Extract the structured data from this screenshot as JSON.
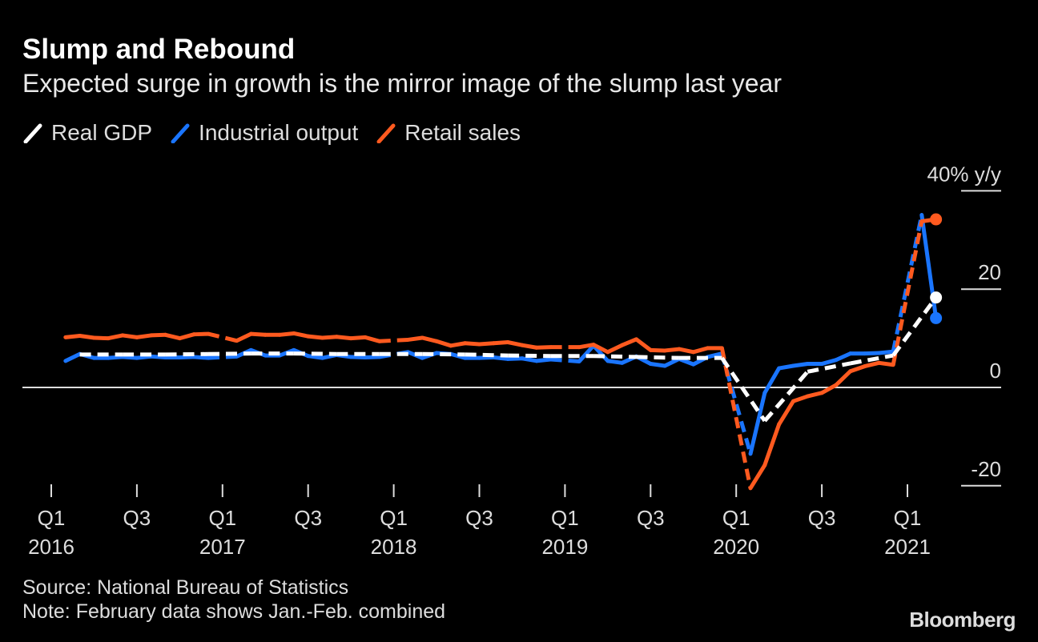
{
  "title": "Slump and Rebound",
  "subtitle": "Expected surge in growth is the mirror image of the slump last year",
  "source": "Source: National Bureau of Statistics",
  "note": "Note: February data shows Jan.-Feb. combined",
  "logo": "Bloomberg",
  "chart_data": {
    "type": "line",
    "title": "Slump and Rebound",
    "subtitle": "Expected surge in growth is the mirror image of the slump last year",
    "ylabel": "% y/y",
    "ylim": [
      -20,
      40
    ],
    "yticks": [
      {
        "v": 40,
        "label": "40%"
      },
      {
        "v": 20,
        "label": "20"
      },
      {
        "v": 0,
        "label": "0"
      },
      {
        "v": -20,
        "label": "-20"
      }
    ],
    "yunit": "y/y",
    "xticks": [
      {
        "date": "2016-01",
        "q": "Q1",
        "year": "2016"
      },
      {
        "date": "2016-07",
        "q": "Q3",
        "year": ""
      },
      {
        "date": "2017-01",
        "q": "Q1",
        "year": "2017"
      },
      {
        "date": "2017-07",
        "q": "Q3",
        "year": ""
      },
      {
        "date": "2018-01",
        "q": "Q1",
        "year": "2018"
      },
      {
        "date": "2018-07",
        "q": "Q3",
        "year": ""
      },
      {
        "date": "2019-01",
        "q": "Q1",
        "year": "2019"
      },
      {
        "date": "2019-07",
        "q": "Q3",
        "year": ""
      },
      {
        "date": "2020-01",
        "q": "Q1",
        "year": "2020"
      },
      {
        "date": "2020-07",
        "q": "Q3",
        "year": ""
      },
      {
        "date": "2021-01",
        "q": "Q1",
        "year": "2021"
      }
    ],
    "legend_position": "top-left",
    "grid": false,
    "series": [
      {
        "name": "Real GDP",
        "color": "#ffffff",
        "dashed": true,
        "x": [
          "2016-03",
          "2016-06",
          "2016-09",
          "2016-12",
          "2017-03",
          "2017-06",
          "2017-09",
          "2017-12",
          "2018-03",
          "2018-06",
          "2018-09",
          "2018-12",
          "2019-03",
          "2019-06",
          "2019-09",
          "2019-12",
          "2020-03",
          "2020-06",
          "2020-09",
          "2020-12",
          "2021-03"
        ],
        "y": [
          6.7,
          6.7,
          6.7,
          6.8,
          6.9,
          6.9,
          6.8,
          6.8,
          6.8,
          6.7,
          6.5,
          6.4,
          6.4,
          6.2,
          6.0,
          6.0,
          -6.8,
          3.2,
          4.9,
          6.5,
          18.3
        ]
      },
      {
        "name": "Industrial output",
        "color": "#1a75ff",
        "dashed": false,
        "x": [
          "2016-02",
          "2016-03",
          "2016-04",
          "2016-05",
          "2016-06",
          "2016-07",
          "2016-08",
          "2016-09",
          "2016-10",
          "2016-11",
          "2016-12",
          "2017-02",
          "2017-03",
          "2017-04",
          "2017-05",
          "2017-06",
          "2017-07",
          "2017-08",
          "2017-09",
          "2017-10",
          "2017-11",
          "2017-12",
          "2018-02",
          "2018-03",
          "2018-04",
          "2018-05",
          "2018-06",
          "2018-07",
          "2018-08",
          "2018-09",
          "2018-10",
          "2018-11",
          "2018-12",
          "2019-02",
          "2019-03",
          "2019-04",
          "2019-05",
          "2019-06",
          "2019-07",
          "2019-08",
          "2019-09",
          "2019-10",
          "2019-11",
          "2019-12",
          "2020-02",
          "2020-03",
          "2020-04",
          "2020-05",
          "2020-06",
          "2020-07",
          "2020-08",
          "2020-09",
          "2020-10",
          "2020-11",
          "2020-12",
          "2021-02",
          "2021-03"
        ],
        "y": [
          5.4,
          6.8,
          6.0,
          6.0,
          6.2,
          6.0,
          6.3,
          6.1,
          6.1,
          6.2,
          6.0,
          6.3,
          7.6,
          6.5,
          6.5,
          7.6,
          6.4,
          6.0,
          6.6,
          6.2,
          6.1,
          6.2,
          7.2,
          6.0,
          7.0,
          6.8,
          6.0,
          6.0,
          6.1,
          5.8,
          5.9,
          5.4,
          5.7,
          5.3,
          8.5,
          5.4,
          5.0,
          6.3,
          4.8,
          4.4,
          5.8,
          4.7,
          6.2,
          6.9,
          -13.5,
          -1.1,
          3.9,
          4.4,
          4.8,
          4.8,
          5.6,
          6.9,
          6.9,
          7.0,
          7.3,
          35.1,
          14.1
        ]
      },
      {
        "name": "Retail sales",
        "color": "#ff5a1f",
        "dashed": false,
        "x": [
          "2016-02",
          "2016-03",
          "2016-04",
          "2016-05",
          "2016-06",
          "2016-07",
          "2016-08",
          "2016-09",
          "2016-10",
          "2016-11",
          "2016-12",
          "2017-02",
          "2017-03",
          "2017-04",
          "2017-05",
          "2017-06",
          "2017-07",
          "2017-08",
          "2017-09",
          "2017-10",
          "2017-11",
          "2017-12",
          "2018-02",
          "2018-03",
          "2018-04",
          "2018-05",
          "2018-06",
          "2018-07",
          "2018-08",
          "2018-09",
          "2018-10",
          "2018-11",
          "2018-12",
          "2019-02",
          "2019-03",
          "2019-04",
          "2019-05",
          "2019-06",
          "2019-07",
          "2019-08",
          "2019-09",
          "2019-10",
          "2019-11",
          "2019-12",
          "2020-02",
          "2020-03",
          "2020-04",
          "2020-05",
          "2020-06",
          "2020-07",
          "2020-08",
          "2020-09",
          "2020-10",
          "2020-11",
          "2020-12",
          "2021-02",
          "2021-03"
        ],
        "y": [
          10.2,
          10.5,
          10.1,
          10.0,
          10.6,
          10.2,
          10.6,
          10.7,
          10.0,
          10.8,
          10.9,
          9.5,
          10.9,
          10.7,
          10.7,
          11.0,
          10.4,
          10.1,
          10.3,
          10.0,
          10.2,
          9.4,
          9.7,
          10.1,
          9.4,
          8.5,
          9.0,
          8.8,
          9.0,
          9.2,
          8.6,
          8.1,
          8.2,
          8.2,
          8.7,
          7.2,
          8.6,
          9.8,
          7.6,
          7.5,
          7.8,
          7.2,
          8.0,
          8.0,
          -20.5,
          -15.8,
          -7.5,
          -2.8,
          -1.8,
          -1.1,
          0.5,
          3.3,
          4.3,
          5.0,
          4.6,
          33.8,
          34.2
        ]
      }
    ]
  }
}
